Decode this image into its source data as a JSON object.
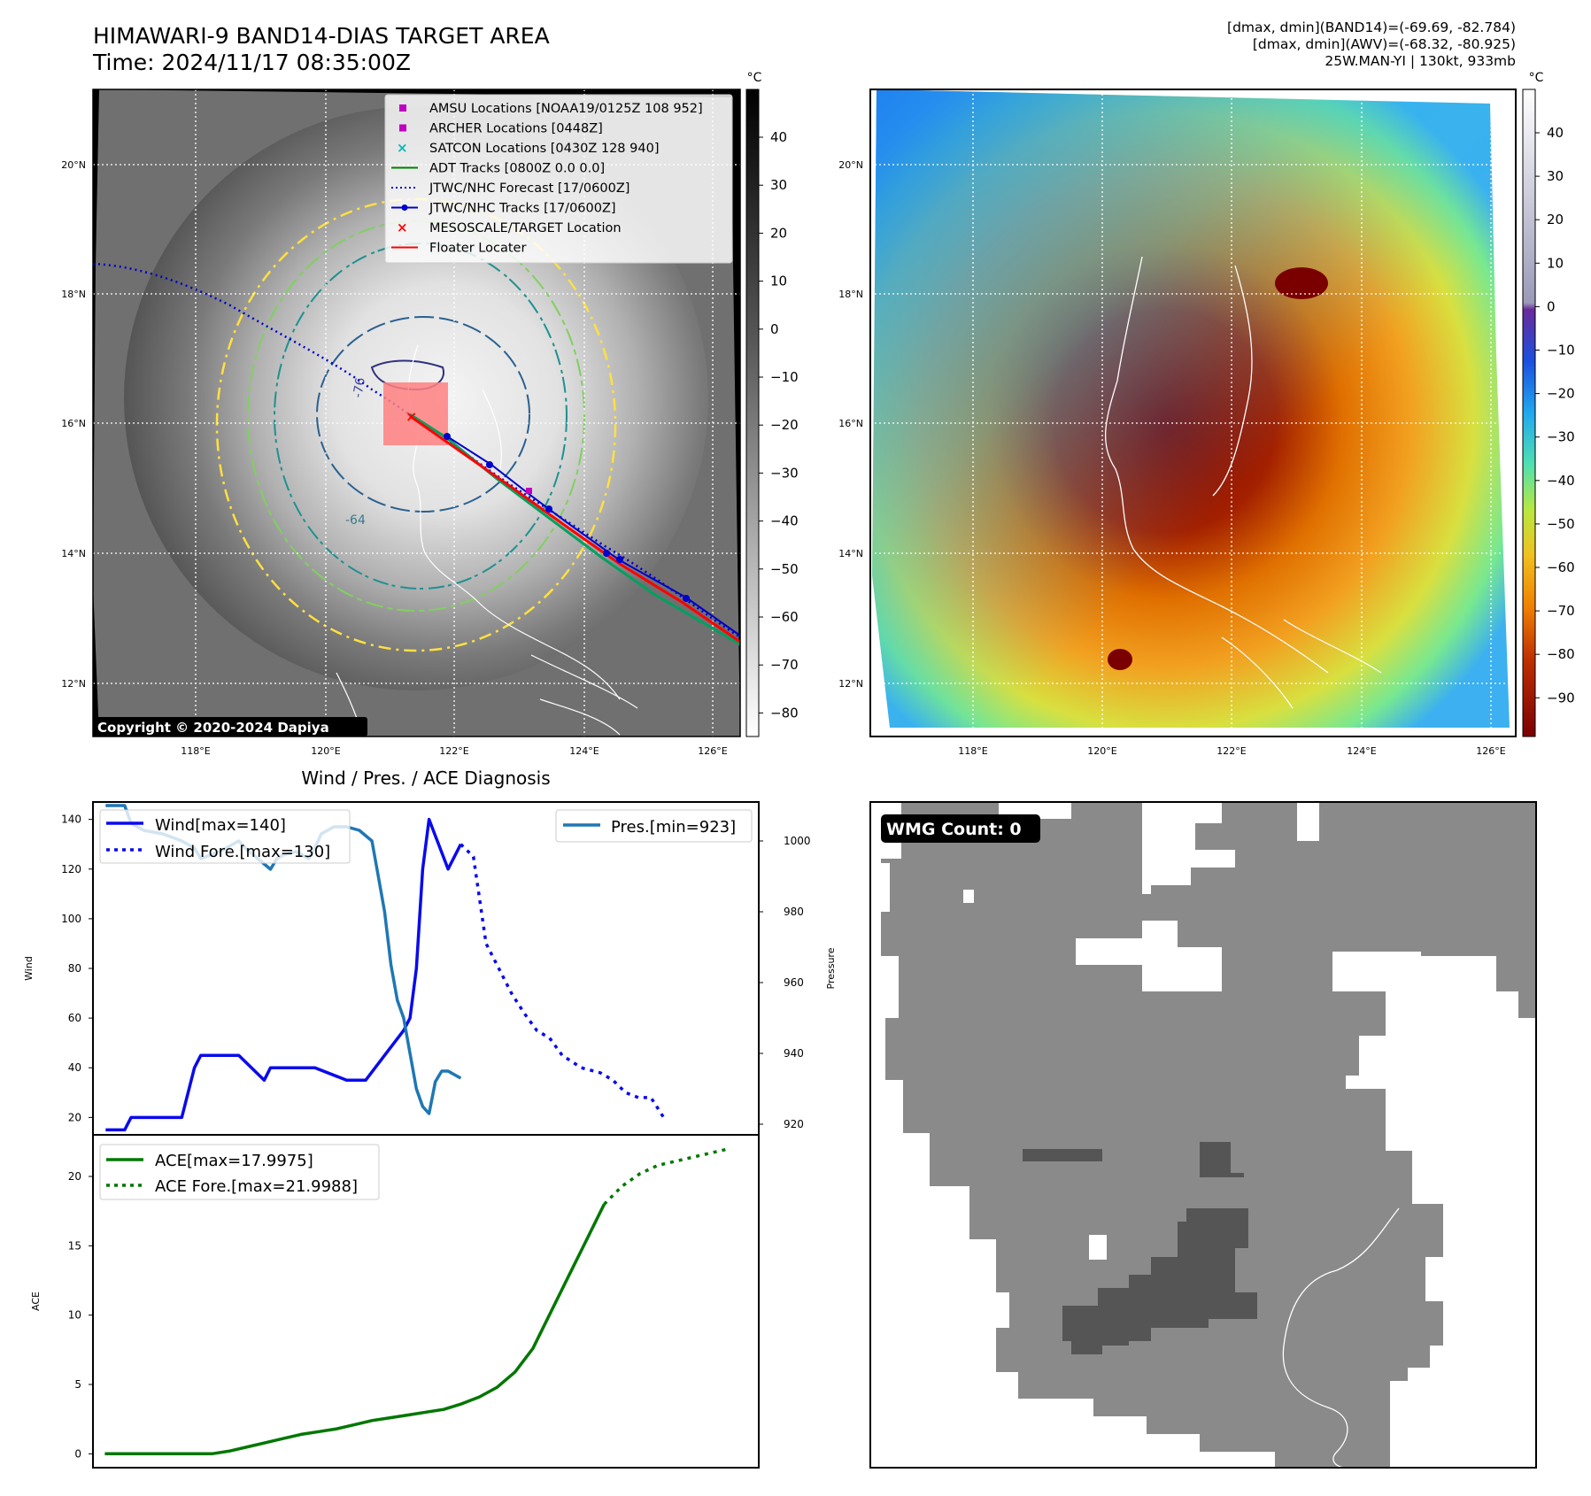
{
  "header": {
    "title_line1": "HIMAWARI-9 BAND14-DIAS TARGET AREA",
    "title_line2": "Time: 2024/11/17 08:35:00Z",
    "info_line1": "[dmax, dmin](BAND14)=(-69.69, -82.784)",
    "info_line2": "[dmax, dmin](AWV)=(-68.32, -80.925)",
    "info_line3": "25W.MAN-YI | 130kt, 933mb"
  },
  "colors": {
    "wind": "#0a0aee",
    "pressure": "#1f77b4",
    "ace": "#007700",
    "fore_red": "#ff0000",
    "map_bg_ir": "#6e6e6e",
    "wmg_gray": "#8a8a8a",
    "wmg_dark": "#555555"
  },
  "map_ir": {
    "unit": "°C",
    "colorbar_ticks": [
      "40",
      "30",
      "20",
      "10",
      "0",
      "−10",
      "−20",
      "−30",
      "−40",
      "−50",
      "−60",
      "−70",
      "−80"
    ],
    "lat_labels": [
      "20°N",
      "18°N",
      "16°N",
      "14°N",
      "12°N"
    ],
    "lon_labels": [
      "118°E",
      "120°E",
      "122°E",
      "124°E",
      "126°E"
    ],
    "copyright": "Copyright © 2020-2024 Dapiya",
    "legend": [
      {
        "label": "AMSU Locations [NOAA19/0125Z 108 952]",
        "marker": "square",
        "color": "#c000c0"
      },
      {
        "label": "ARCHER Locations [0448Z]",
        "marker": "square",
        "color": "#c000c0"
      },
      {
        "label": "SATCON Locations [0430Z 128 940]",
        "marker": "x",
        "color": "#00b8b8"
      },
      {
        "label": "ADT Tracks [0800Z 0.0 0.0]",
        "marker": "line",
        "color": "#008000"
      },
      {
        "label": "JTWC/NHC Forecast [17/0600Z]",
        "marker": "dotted",
        "color": "#0000cc"
      },
      {
        "label": "JTWC/NHC Tracks [17/0600Z]",
        "marker": "line-dot",
        "color": "#0000cc"
      },
      {
        "label": "MESOSCALE/TARGET Location",
        "marker": "x",
        "color": "#ff0000"
      },
      {
        "label": "Floater Locater",
        "marker": "line",
        "color": "#ff0000"
      }
    ],
    "contour_labels": [
      "-76",
      "-64"
    ]
  },
  "map_awv": {
    "unit": "°C",
    "colorbar_ticks": [
      "40",
      "30",
      "20",
      "10",
      "0",
      "−10",
      "−20",
      "−30",
      "−40",
      "−50",
      "−60",
      "−70",
      "−80",
      "−90"
    ],
    "lat_labels": [
      "20°N",
      "18°N",
      "16°N",
      "14°N",
      "12°N"
    ],
    "lon_labels": [
      "118°E",
      "120°E",
      "122°E",
      "124°E",
      "126°E"
    ]
  },
  "wmg": {
    "label": "WMG Count: 0"
  },
  "chart_data": [
    {
      "type": "line",
      "title": "Wind / Pres. / ACE Diagnosis",
      "ylabel": "Wind",
      "y2label": "Pressure",
      "ylim": [
        13,
        147
      ],
      "y2lim": [
        917,
        1011
      ],
      "yticks": [
        20,
        40,
        60,
        80,
        100,
        120,
        140
      ],
      "y2ticks": [
        920,
        940,
        960,
        980,
        1000
      ],
      "xlim": [
        -2,
        103
      ],
      "series": [
        {
          "name": "Wind[max=140]",
          "axis": "left",
          "style": "solid",
          "x": [
            0,
            3,
            4,
            6,
            12,
            14,
            15,
            18,
            21,
            25,
            26,
            30,
            32,
            33,
            38,
            40,
            41,
            44,
            47,
            48,
            49,
            50,
            51,
            54,
            56
          ],
          "values": [
            15,
            15,
            20,
            20,
            20,
            40,
            45,
            45,
            45,
            35,
            40,
            40,
            40,
            40,
            35,
            35,
            35,
            45,
            55,
            60,
            80,
            120,
            140,
            120,
            130
          ]
        },
        {
          "name": "Wind Fore.[max=130]",
          "axis": "left",
          "style": "dotted",
          "x": [
            56,
            58,
            60,
            62,
            64,
            66,
            68,
            70,
            72,
            75,
            78,
            80,
            82,
            84,
            86,
            88
          ],
          "values": [
            130,
            125,
            90,
            80,
            70,
            62,
            55,
            52,
            45,
            40,
            38,
            35,
            30,
            28,
            28,
            20
          ]
        },
        {
          "name": "Pres.[min=923]",
          "axis": "right",
          "style": "solid",
          "x": [
            0,
            3,
            4,
            6,
            9,
            12,
            14,
            15,
            18,
            21,
            22,
            24,
            26,
            27,
            28,
            30,
            32,
            33,
            34,
            36,
            38,
            40,
            42,
            43,
            44,
            45,
            46,
            47,
            48,
            49,
            50,
            51,
            52,
            53,
            54,
            55,
            56
          ],
          "values": [
            1010,
            1010,
            1005,
            1003,
            1002,
            1000,
            998,
            995,
            997,
            1000,
            998,
            995,
            992,
            995,
            996,
            997,
            995,
            998,
            1002,
            1004,
            1004,
            1003,
            1000,
            990,
            980,
            965,
            955,
            950,
            940,
            930,
            925,
            923,
            932,
            935,
            935,
            934,
            933
          ]
        },
        {
          "name": "ACE[max=17.9975]",
          "axis": "bottom",
          "style": "solid",
          "x": [
            0,
            3,
            6,
            9,
            12,
            15,
            18,
            21,
            24,
            27,
            30,
            33,
            36,
            39,
            42,
            45,
            48,
            51,
            54,
            57,
            60,
            63,
            66,
            69,
            72,
            75,
            78,
            81,
            84,
            87,
            90,
            93,
            96,
            99,
            102,
            105
          ],
          "values": [
            0,
            0,
            0,
            0,
            0,
            0,
            0,
            0.2,
            0.5,
            0.8,
            1.1,
            1.4,
            1.6,
            1.8,
            2.1,
            2.4,
            2.6,
            2.8,
            3.0,
            3.2,
            3.6,
            4.1,
            4.8,
            5.9,
            7.6,
            10.2,
            12.8,
            15.4,
            17.9975,
            19.3,
            20.2,
            20.8,
            21.1,
            21.4,
            21.7,
            21.9988
          ]
        }
      ],
      "ace_panel": {
        "ylabel": "ACE",
        "ylim": [
          -1,
          23
        ],
        "yticks": [
          0,
          5,
          10,
          15,
          20
        ],
        "xlim": [
          -2,
          110
        ],
        "forecast_name": "ACE Fore.[max=21.9988]",
        "forecast_start_index": 28
      }
    }
  ]
}
